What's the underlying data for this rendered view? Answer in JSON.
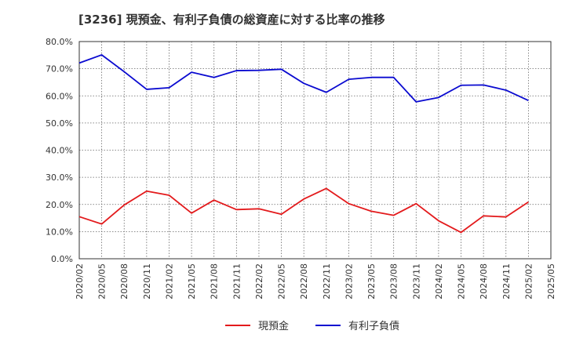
{
  "chart_data": {
    "type": "line",
    "title": "[3236]  現預金、有利子負債の総資産に対する比率の推移",
    "xlabel": "",
    "ylabel": "",
    "ylim": [
      0,
      80
    ],
    "y_ticks": [
      "0.0%",
      "10.0%",
      "20.0%",
      "30.0%",
      "40.0%",
      "50.0%",
      "60.0%",
      "70.0%",
      "80.0%"
    ],
    "categories": [
      "2020/02",
      "2020/05",
      "2020/08",
      "2020/11",
      "2021/02",
      "2021/05",
      "2021/08",
      "2021/11",
      "2022/02",
      "2022/05",
      "2022/08",
      "2022/11",
      "2023/02",
      "2023/05",
      "2023/08",
      "2023/11",
      "2024/02",
      "2024/05",
      "2024/08",
      "2024/11",
      "2025/02",
      "2025/05"
    ],
    "series": [
      {
        "name": "現預金",
        "color": "#e31a1c",
        "values": [
          15.5,
          12.8,
          19.8,
          24.9,
          23.4,
          16.8,
          21.6,
          18.1,
          18.4,
          16.4,
          22.0,
          25.9,
          20.3,
          17.5,
          16.0,
          20.3,
          14.0,
          9.7,
          15.8,
          15.4,
          20.9,
          null
        ]
      },
      {
        "name": "有利子負債",
        "color": "#0a0ad0",
        "values": [
          72.1,
          75.1,
          68.9,
          62.4,
          63.0,
          68.7,
          66.8,
          69.3,
          69.4,
          69.8,
          64.6,
          61.3,
          66.1,
          66.8,
          66.8,
          57.8,
          59.4,
          63.9,
          64.0,
          62.1,
          58.3,
          null
        ]
      }
    ],
    "legend_position": "bottom-center",
    "grid": true
  }
}
